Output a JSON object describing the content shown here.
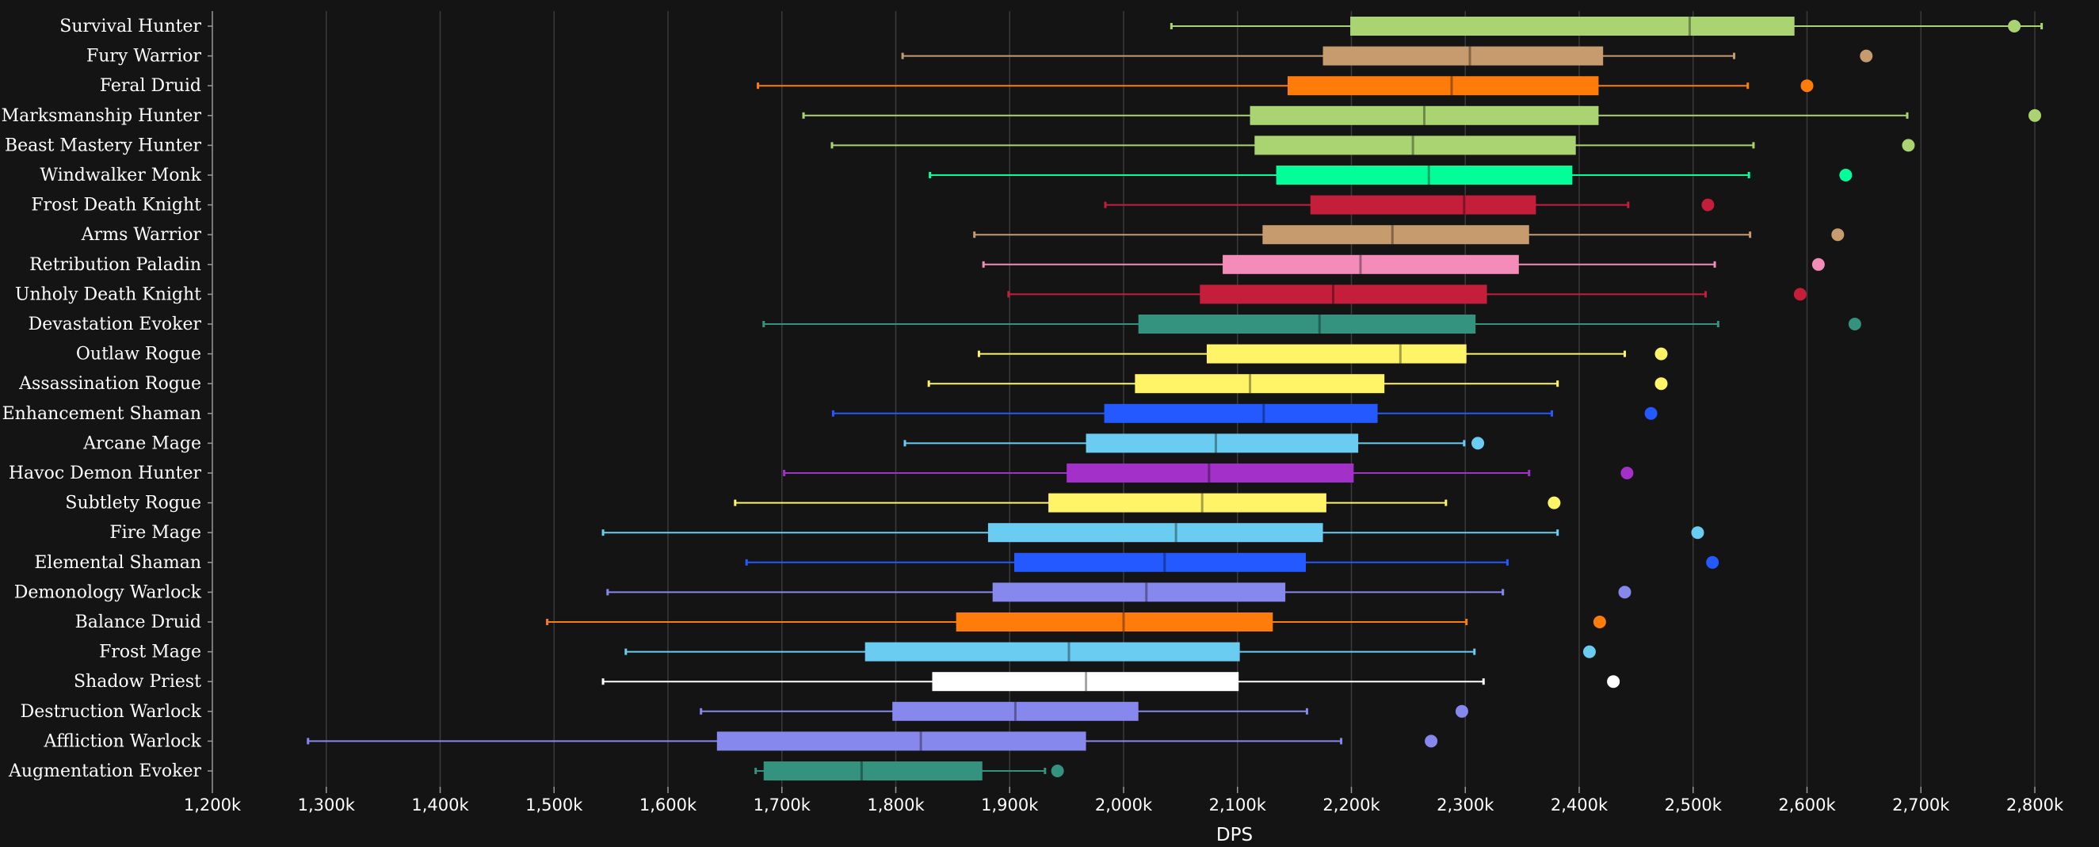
{
  "chart_data": {
    "type": "boxplot",
    "xlabel": "DPS",
    "xlim": [
      1200,
      2800
    ],
    "x_ticks": [
      {
        "value": 1200,
        "label": "1,200k"
      },
      {
        "value": 1300,
        "label": "1,300k"
      },
      {
        "value": 1400,
        "label": "1,400k"
      },
      {
        "value": 1500,
        "label": "1,500k"
      },
      {
        "value": 1600,
        "label": "1,600k"
      },
      {
        "value": 1700,
        "label": "1,700k"
      },
      {
        "value": 1800,
        "label": "1,800k"
      },
      {
        "value": 1900,
        "label": "1,900k"
      },
      {
        "value": 2000,
        "label": "2,000k"
      },
      {
        "value": 2100,
        "label": "2,100k"
      },
      {
        "value": 2200,
        "label": "2,200k"
      },
      {
        "value": 2300,
        "label": "2,300k"
      },
      {
        "value": 2400,
        "label": "2,400k"
      },
      {
        "value": 2500,
        "label": "2,500k"
      },
      {
        "value": 2600,
        "label": "2,600k"
      },
      {
        "value": 2700,
        "label": "2,700k"
      },
      {
        "value": 2800,
        "label": "2,800k"
      }
    ],
    "grid": true,
    "series": [
      {
        "name": "Survival Hunter",
        "color": "#AAD372",
        "min": 2042,
        "q1": 2199,
        "median": 2497,
        "q3": 2589,
        "max": 2806,
        "outlier": 2782
      },
      {
        "name": "Fury Warrior",
        "color": "#C69B6D",
        "min": 1806,
        "q1": 2175,
        "median": 2304,
        "q3": 2421,
        "max": 2536,
        "outlier": 2652
      },
      {
        "name": "Feral Druid",
        "color": "#FF7C0A",
        "min": 1679,
        "q1": 2144,
        "median": 2288,
        "q3": 2417,
        "max": 2548,
        "outlier": 2600
      },
      {
        "name": "Marksmanship Hunter",
        "color": "#AAD372",
        "min": 1719,
        "q1": 2111,
        "median": 2264,
        "q3": 2417,
        "max": 2688,
        "outlier": 2800
      },
      {
        "name": "Beast Mastery Hunter",
        "color": "#AAD372",
        "min": 1744,
        "q1": 2115,
        "median": 2254,
        "q3": 2397,
        "max": 2553,
        "outlier": 2689
      },
      {
        "name": "Windwalker Monk",
        "color": "#00FF98",
        "min": 1830,
        "q1": 2134,
        "median": 2268,
        "q3": 2394,
        "max": 2549,
        "outlier": 2634
      },
      {
        "name": "Frost Death Knight",
        "color": "#C41E3A",
        "min": 1984,
        "q1": 2164,
        "median": 2299,
        "q3": 2362,
        "max": 2443,
        "outlier": 2513
      },
      {
        "name": "Arms Warrior",
        "color": "#C69B6D",
        "min": 1869,
        "q1": 2122,
        "median": 2236,
        "q3": 2356,
        "max": 2550,
        "outlier": 2627
      },
      {
        "name": "Retribution Paladin",
        "color": "#F48CBA",
        "min": 1877,
        "q1": 2087,
        "median": 2208,
        "q3": 2347,
        "max": 2519,
        "outlier": 2610
      },
      {
        "name": "Unholy Death Knight",
        "color": "#C41E3A",
        "min": 1899,
        "q1": 2067,
        "median": 2184,
        "q3": 2319,
        "max": 2511,
        "outlier": 2594
      },
      {
        "name": "Devastation Evoker",
        "color": "#33937F",
        "min": 1684,
        "q1": 2013,
        "median": 2172,
        "q3": 2309,
        "max": 2522,
        "outlier": 2642
      },
      {
        "name": "Outlaw Rogue",
        "color": "#FFF468",
        "min": 1873,
        "q1": 2073,
        "median": 2243,
        "q3": 2301,
        "max": 2440,
        "outlier": 2472
      },
      {
        "name": "Assassination Rogue",
        "color": "#FFF468",
        "min": 1829,
        "q1": 2010,
        "median": 2111,
        "q3": 2229,
        "max": 2381,
        "outlier": 2472
      },
      {
        "name": "Enhancement Shaman",
        "color": "#2459FF",
        "min": 1745,
        "q1": 1983,
        "median": 2123,
        "q3": 2223,
        "max": 2376,
        "outlier": 2463
      },
      {
        "name": "Arcane Mage",
        "color": "#69CCF0",
        "min": 1808,
        "q1": 1967,
        "median": 2081,
        "q3": 2206,
        "max": 2299,
        "outlier": 2311
      },
      {
        "name": "Havoc Demon Hunter",
        "color": "#A330C9",
        "min": 1702,
        "q1": 1950,
        "median": 2075,
        "q3": 2202,
        "max": 2356,
        "outlier": 2442
      },
      {
        "name": "Subtlety Rogue",
        "color": "#FFF468",
        "min": 1659,
        "q1": 1934,
        "median": 2069,
        "q3": 2178,
        "max": 2283,
        "outlier": 2378
      },
      {
        "name": "Fire Mage",
        "color": "#69CCF0",
        "min": 1543,
        "q1": 1881,
        "median": 2046,
        "q3": 2175,
        "max": 2381,
        "outlier": 2504
      },
      {
        "name": "Elemental Shaman",
        "color": "#2459FF",
        "min": 1669,
        "q1": 1904,
        "median": 2036,
        "q3": 2160,
        "max": 2337,
        "outlier": 2517
      },
      {
        "name": "Demonology Warlock",
        "color": "#8788EE",
        "min": 1547,
        "q1": 1885,
        "median": 2020,
        "q3": 2142,
        "max": 2333,
        "outlier": 2440
      },
      {
        "name": "Balance Druid",
        "color": "#FF7C0A",
        "min": 1494,
        "q1": 1853,
        "median": 2000,
        "q3": 2131,
        "max": 2301,
        "outlier": 2418
      },
      {
        "name": "Frost Mage",
        "color": "#69CCF0",
        "min": 1563,
        "q1": 1773,
        "median": 1952,
        "q3": 2102,
        "max": 2308,
        "outlier": 2409
      },
      {
        "name": "Shadow Priest",
        "color": "#FFFFFF",
        "min": 1543,
        "q1": 1832,
        "median": 1967,
        "q3": 2101,
        "max": 2316,
        "outlier": 2430
      },
      {
        "name": "Destruction Warlock",
        "color": "#8788EE",
        "min": 1629,
        "q1": 1797,
        "median": 1905,
        "q3": 2013,
        "max": 2161,
        "outlier": 2297
      },
      {
        "name": "Affliction Warlock",
        "color": "#8788EE",
        "min": 1284,
        "q1": 1643,
        "median": 1822,
        "q3": 1967,
        "max": 2191,
        "outlier": 2270
      },
      {
        "name": "Augmentation Evoker",
        "color": "#33937F",
        "min": 1677,
        "q1": 1684,
        "median": 1770,
        "q3": 1876,
        "max": 1931,
        "outlier": 1942
      }
    ]
  }
}
